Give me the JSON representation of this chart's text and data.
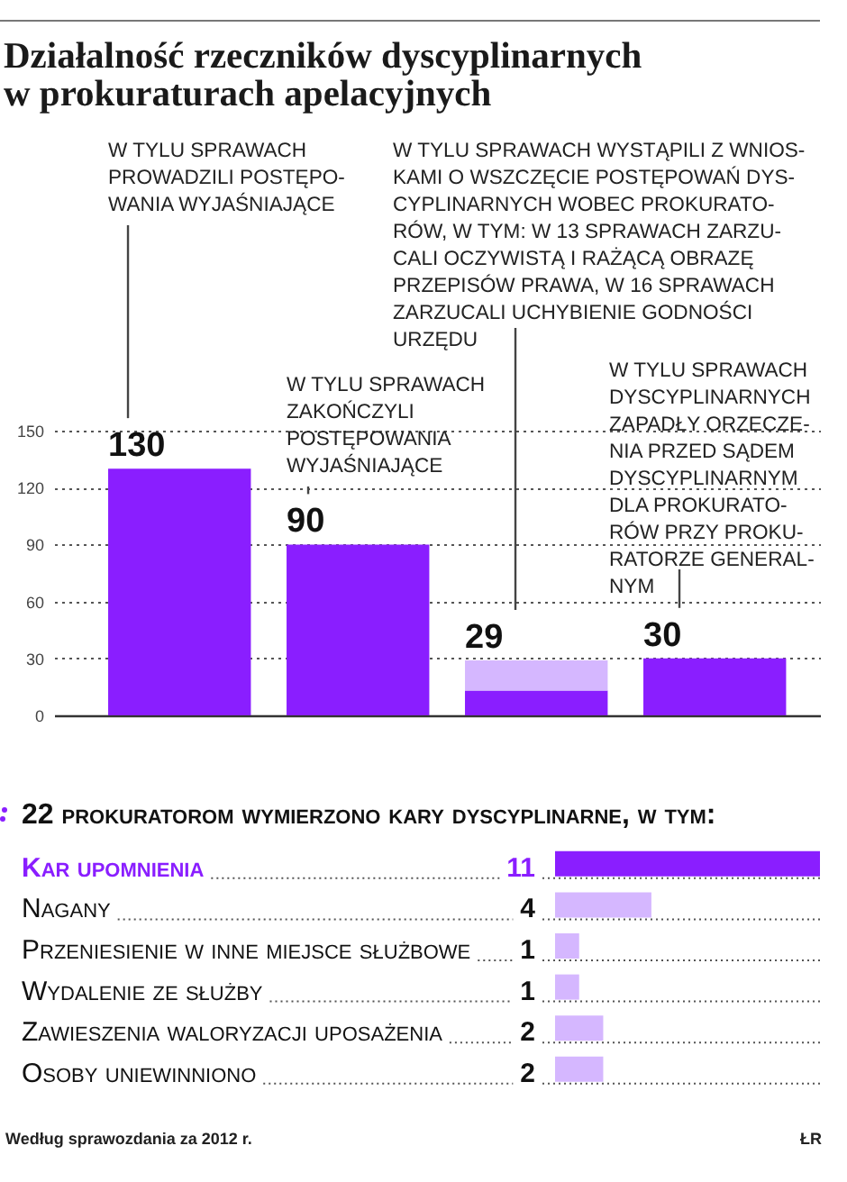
{
  "chart_data": [
    {
      "type": "bar",
      "title": "Działalność rzeczników dyscyplinarnych\nw prokuraturach apelacyjnych",
      "categories": [
        null,
        null,
        null,
        null
      ],
      "series": [
        {
          "color": "#8a1eff",
          "values": [
            130,
            90,
            13,
            30
          ]
        },
        {
          "color": "#d5b7ff",
          "values": [
            null,
            null,
            16,
            null
          ]
        }
      ],
      "stacked": true,
      "totals": [
        "130",
        "90",
        "29",
        "30"
      ],
      "ylim": [
        0,
        150
      ],
      "yticks": [
        0,
        30,
        60,
        90,
        120,
        150
      ],
      "grid": "y",
      "tick_labels": "y",
      "annotations": [
        "W TYLU SPRAWACH\nPROWADZILI POSTĘPO-\nWANIA WYJAŚNIAJĄCE",
        "W TYLU SPRAWACH\nZAKOŃCZYLI\nPOSTĘPOWANIA\nWYJAŚNIAJĄCE",
        "W TYLU SPRAWACH WYSTĄPILI Z WNIOS-\nKAMI O WSZCZĘCIE POSTĘPOWAŃ DYS-\nCYPLINARNYCH WOBEC PROKURATO-\nRÓW, W TYM: W 13 SPRAWACH ZARZU-\nCALI OCZYWISTĄ I RAŻĄCĄ OBRAZĘ\nPRZEPISÓW PRAWA, W 16 SPRAWACH\nZARZUCALI UCHYBIENIE GODNOŚCI\nURZĘDU",
        "W TYLU SPRAWACH\nDYSCYPLINARNYCH\nZAPADŁY ORZECZE-\nNIA PRZED SĄDEM\nDYSCYPLINARNYM\nDLA PROKURATO-\nRÓW PRZY PROKU-\nRATORZE GENERAL-\nNYM"
      ]
    },
    {
      "type": "bar",
      "orientation": "horizontal",
      "title": "22 prokuratorom wymierzono kary dyscyplinarne, w tym:",
      "categories": [
        "Kar upomnienia",
        "Nagany",
        "Przeniesienie w inne miejsce służbowe",
        "Wydalenie ze służby",
        "Zawieszenia waloryzacji uposażenia",
        "Osoby uniewinniono"
      ],
      "values": [
        11,
        4,
        1,
        1,
        2,
        2
      ],
      "colors": [
        "#8a1eff",
        "#d5b7ff",
        "#d5b7ff",
        "#d5b7ff",
        "#d5b7ff",
        "#d5b7ff"
      ],
      "data_labels": true,
      "tick_labels": "y",
      "annotations": [
        "Według sprawozdania za 2012 r.",
        "ŁR"
      ]
    }
  ]
}
